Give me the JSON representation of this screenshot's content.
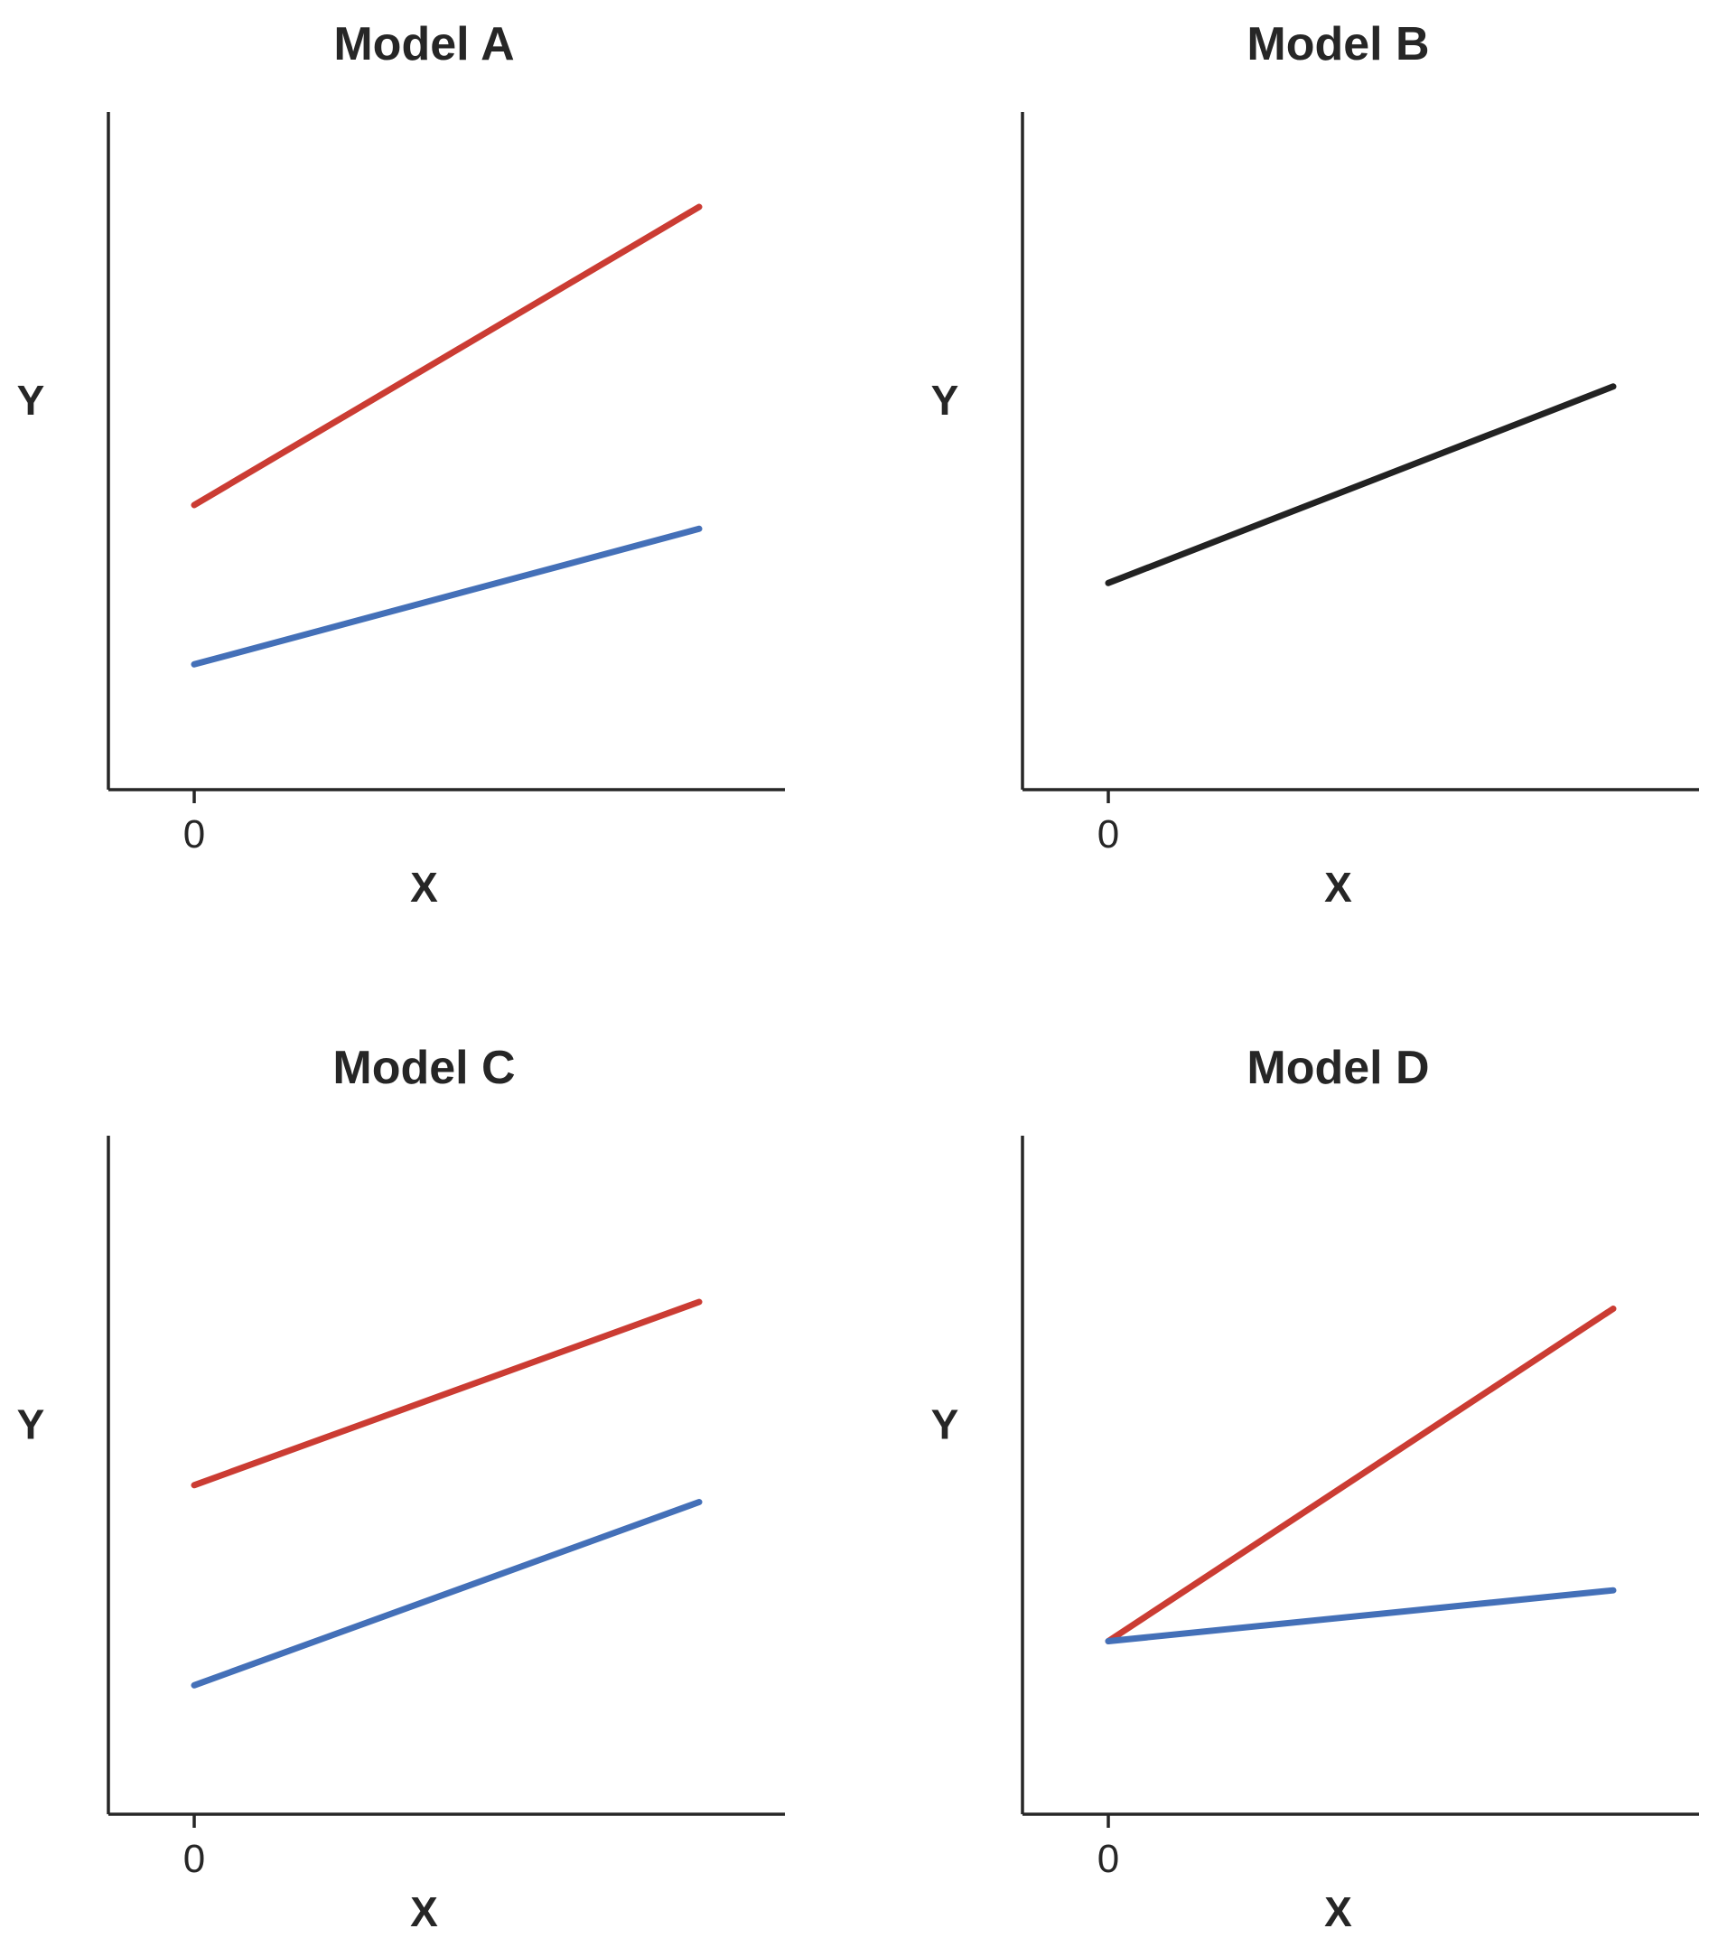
{
  "chart_data": [
    {
      "type": "line",
      "title": "Model A",
      "xlabel": "X",
      "ylabel": "Y",
      "xticks": [
        {
          "value": 0,
          "label": "0"
        }
      ],
      "xlim": [
        -0.17,
        1.17
      ],
      "ylim": [
        0,
        1
      ],
      "series": [
        {
          "name": "red",
          "color": "#cb3c33",
          "x": [
            0,
            1
          ],
          "y": [
            0.42,
            0.86
          ]
        },
        {
          "name": "blue",
          "color": "#4470b8",
          "x": [
            0,
            1
          ],
          "y": [
            0.185,
            0.385
          ]
        }
      ]
    },
    {
      "type": "line",
      "title": "Model B",
      "xlabel": "X",
      "ylabel": "Y",
      "xticks": [
        {
          "value": 0,
          "label": "0"
        }
      ],
      "xlim": [
        -0.17,
        1.17
      ],
      "ylim": [
        0,
        1
      ],
      "series": [
        {
          "name": "black",
          "color": "#222222",
          "x": [
            0,
            1
          ],
          "y": [
            0.305,
            0.595
          ]
        }
      ]
    },
    {
      "type": "line",
      "title": "Model C",
      "xlabel": "X",
      "ylabel": "Y",
      "xticks": [
        {
          "value": 0,
          "label": "0"
        }
      ],
      "xlim": [
        -0.17,
        1.17
      ],
      "ylim": [
        0,
        1
      ],
      "series": [
        {
          "name": "red",
          "color": "#cb3c33",
          "x": [
            0,
            1
          ],
          "y": [
            0.485,
            0.755
          ]
        },
        {
          "name": "blue",
          "color": "#4470b8",
          "x": [
            0,
            1
          ],
          "y": [
            0.19,
            0.46
          ]
        }
      ]
    },
    {
      "type": "line",
      "title": "Model D",
      "xlabel": "X",
      "ylabel": "Y",
      "xticks": [
        {
          "value": 0,
          "label": "0"
        }
      ],
      "xlim": [
        -0.17,
        1.17
      ],
      "ylim": [
        0,
        1
      ],
      "series": [
        {
          "name": "red",
          "color": "#cb3c33",
          "x": [
            0,
            1
          ],
          "y": [
            0.255,
            0.745
          ]
        },
        {
          "name": "blue",
          "color": "#4470b8",
          "x": [
            0,
            1
          ],
          "y": [
            0.255,
            0.33
          ]
        }
      ]
    }
  ]
}
